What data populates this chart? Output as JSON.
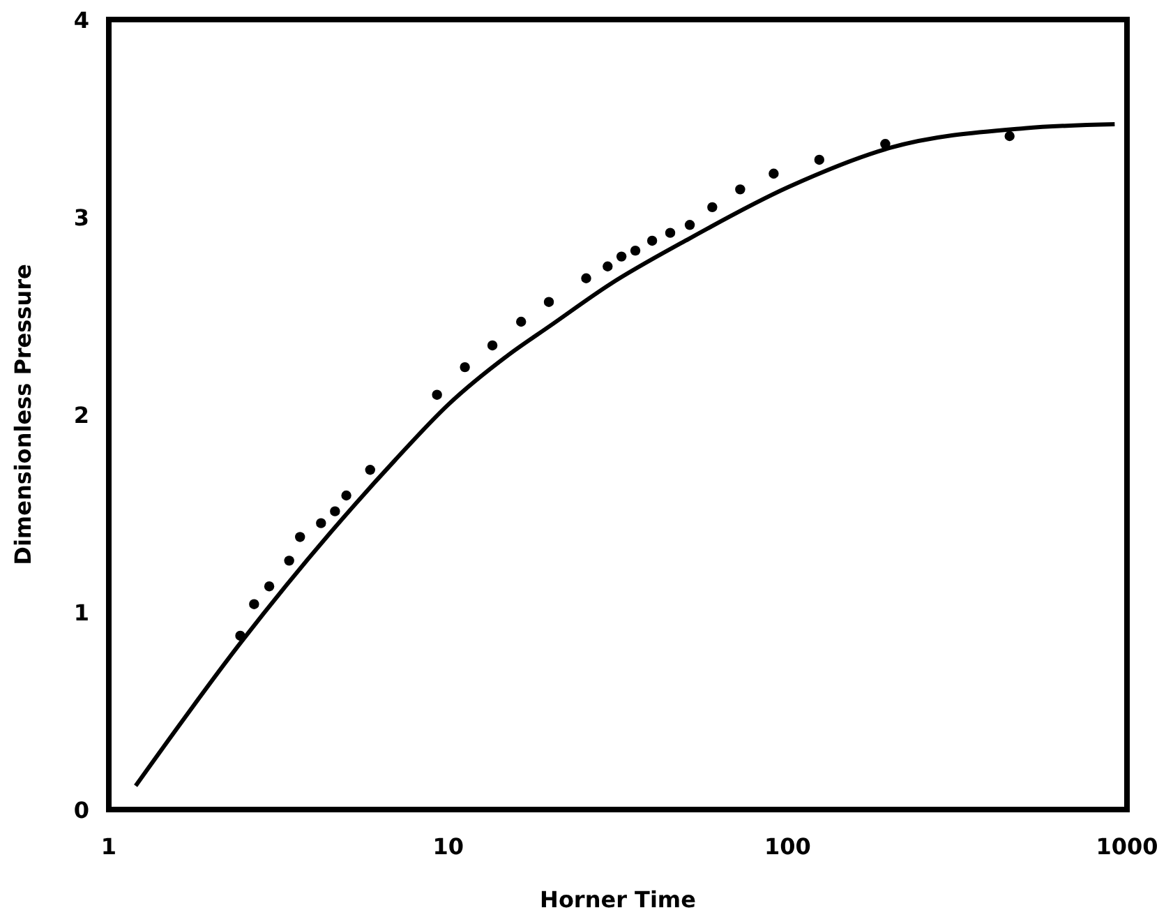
{
  "chart_data": {
    "type": "scatter",
    "xlabel": "Horner Time",
    "ylabel": "Dimensionless Pressure",
    "log": "x",
    "xlim": [
      1,
      1000
    ],
    "ylim": [
      0,
      4
    ],
    "xticks": [
      1,
      10,
      100,
      1000
    ],
    "yticks": [
      0,
      1,
      2,
      3,
      4
    ],
    "grid": false,
    "series": [
      {
        "color": "#000000",
        "marker": "circle",
        "x": [
          2.44,
          2.68,
          2.97,
          3.4,
          3.66,
          4.22,
          4.64,
          5.01,
          5.89,
          9.27,
          11.2,
          13.5,
          16.4,
          19.8,
          25.5,
          29.5,
          32.4,
          35.6,
          39.9,
          45.1,
          51.5,
          60,
          72.5,
          91,
          124,
          194,
          451
        ],
        "values": [
          0.88,
          1.04,
          1.13,
          1.26,
          1.38,
          1.45,
          1.51,
          1.59,
          1.72,
          2.1,
          2.24,
          2.35,
          2.47,
          2.57,
          2.69,
          2.75,
          2.8,
          2.83,
          2.88,
          2.92,
          2.96,
          3.05,
          3.14,
          3.22,
          3.29,
          3.37,
          3.41
        ]
      },
      {
        "type": "line",
        "color": "#000000",
        "marker": "none",
        "line_style": "solid",
        "x": [
          1.2,
          2.46,
          6.98,
          10,
          15,
          20,
          30,
          50,
          100,
          200,
          500,
          920
        ],
        "values": [
          0.12,
          0.85,
          1.77,
          2.05,
          2.3,
          2.45,
          2.66,
          2.88,
          3.15,
          3.35,
          3.45,
          3.47
        ]
      }
    ]
  }
}
